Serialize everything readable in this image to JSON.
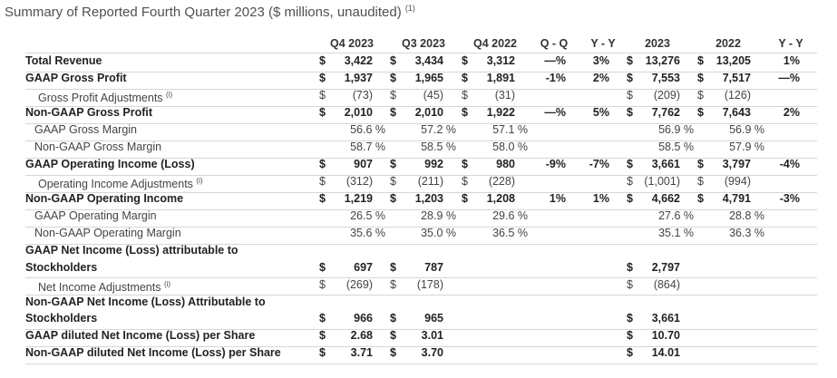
{
  "title": {
    "text": "Summary of Reported Fourth Quarter 2023 ($ millions, unaudited)",
    "note": "(1)"
  },
  "columns": [
    "Q4 2023",
    "Q3 2023",
    "Q4 2022",
    "Q - Q",
    "Y - Y",
    "2023",
    "2022",
    "Y - Y"
  ],
  "rows": [
    {
      "label": "Total Revenue",
      "bold": true,
      "indent": false,
      "lines": 1,
      "q4_23": "3,422",
      "q3_23": "3,434",
      "q4_22": "3,312",
      "qq": "—%",
      "yy": "3%",
      "fy23": "13,276",
      "fy22": "13,205",
      "fyy": "1%",
      "dol": [
        true,
        true,
        true,
        true,
        true
      ]
    },
    {
      "label": "GAAP Gross Profit",
      "bold": true,
      "indent": false,
      "lines": 1,
      "q4_23": "1,937",
      "q3_23": "1,965",
      "q4_22": "1,891",
      "qq": "-1%",
      "yy": "2%",
      "fy23": "7,553",
      "fy22": "7,517",
      "fyy": "—%",
      "dol": [
        true,
        true,
        true,
        true,
        true
      ]
    },
    {
      "label": "Gross Profit Adjustments",
      "sup": "(i)",
      "bold": false,
      "indent": true,
      "lines": 1,
      "q4_23": "(73)",
      "q3_23": "(45)",
      "q4_22": "(31)",
      "qq": "",
      "yy": "",
      "fy23": "(209)",
      "fy22": "(126)",
      "fyy": "",
      "dol": [
        true,
        true,
        true,
        true,
        true
      ]
    },
    {
      "label": "Non-GAAP Gross Profit",
      "bold": true,
      "indent": false,
      "lines": 1,
      "q4_23": "2,010",
      "q3_23": "2,010",
      "q4_22": "1,922",
      "qq": "—%",
      "yy": "5%",
      "fy23": "7,762",
      "fy22": "7,643",
      "fyy": "2%",
      "dol": [
        true,
        true,
        true,
        true,
        true
      ]
    },
    {
      "label": "GAAP Gross Margin",
      "bold": false,
      "indent": true,
      "lines": 1,
      "pct": true,
      "q4_23": "56.6 %",
      "q3_23": "57.2 %",
      "q4_22": "57.1 %",
      "qq": "",
      "yy": "",
      "fy23": "56.9 %",
      "fy22": "56.9 %",
      "fyy": "",
      "dol": [
        false,
        false,
        false,
        false,
        false
      ]
    },
    {
      "label": "Non-GAAP Gross Margin",
      "bold": false,
      "indent": true,
      "lines": 1,
      "pct": true,
      "q4_23": "58.7 %",
      "q3_23": "58.5 %",
      "q4_22": "58.0 %",
      "qq": "",
      "yy": "",
      "fy23": "58.5 %",
      "fy22": "57.9 %",
      "fyy": "",
      "dol": [
        false,
        false,
        false,
        false,
        false
      ]
    },
    {
      "label": "GAAP Operating Income (Loss)",
      "bold": true,
      "indent": false,
      "lines": 1,
      "q4_23": "907",
      "q3_23": "992",
      "q4_22": "980",
      "qq": "-9%",
      "yy": "-7%",
      "fy23": "3,661",
      "fy22": "3,797",
      "fyy": "-4%",
      "dol": [
        true,
        true,
        true,
        true,
        true
      ]
    },
    {
      "label": "Operating Income Adjustments",
      "sup": "(i)",
      "bold": false,
      "indent": true,
      "lines": 1,
      "q4_23": "(312)",
      "q3_23": "(211)",
      "q4_22": "(228)",
      "qq": "",
      "yy": "",
      "fy23": "(1,001)",
      "fy22": "(994)",
      "fyy": "",
      "dol": [
        true,
        true,
        true,
        true,
        true
      ]
    },
    {
      "label": "Non-GAAP Operating Income",
      "bold": true,
      "indent": false,
      "lines": 1,
      "q4_23": "1,219",
      "q3_23": "1,203",
      "q4_22": "1,208",
      "qq": "1%",
      "yy": "1%",
      "fy23": "4,662",
      "fy22": "4,791",
      "fyy": "-3%",
      "dol": [
        true,
        true,
        true,
        true,
        true
      ]
    },
    {
      "label": "GAAP Operating Margin",
      "bold": false,
      "indent": true,
      "lines": 1,
      "pct": true,
      "q4_23": "26.5 %",
      "q3_23": "28.9 %",
      "q4_22": "29.6 %",
      "qq": "",
      "yy": "",
      "fy23": "27.6 %",
      "fy22": "28.8 %",
      "fyy": "",
      "dol": [
        false,
        false,
        false,
        false,
        false
      ]
    },
    {
      "label": "Non-GAAP Operating Margin",
      "bold": false,
      "indent": true,
      "lines": 1,
      "pct": true,
      "q4_23": "35.6 %",
      "q3_23": "35.0 %",
      "q4_22": "36.5 %",
      "qq": "",
      "yy": "",
      "fy23": "35.1 %",
      "fy22": "36.3 %",
      "fyy": "",
      "dol": [
        false,
        false,
        false,
        false,
        false
      ]
    },
    {
      "label": "GAAP Net Income (Loss) attributable to",
      "label2": "Stockholders",
      "bold": true,
      "indent": false,
      "lines": 2,
      "q4_23": "697",
      "q3_23": "787",
      "q4_22": "",
      "qq": "",
      "yy": "",
      "fy23": "2,797",
      "fy22": "",
      "fyy": "",
      "dol": [
        true,
        true,
        false,
        true,
        false
      ]
    },
    {
      "label": "Net Income Adjustments",
      "sup": "(i)",
      "bold": false,
      "indent": true,
      "lines": 1,
      "q4_23": "(269)",
      "q3_23": "(178)",
      "q4_22": "",
      "qq": "",
      "yy": "",
      "fy23": "(864)",
      "fy22": "",
      "fyy": "",
      "dol": [
        true,
        true,
        false,
        true,
        false
      ]
    },
    {
      "label": "Non-GAAP Net Income (Loss) Attributable to",
      "label2": "Stockholders",
      "bold": true,
      "indent": false,
      "lines": 2,
      "q4_23": "966",
      "q3_23": "965",
      "q4_22": "",
      "qq": "",
      "yy": "",
      "fy23": "3,661",
      "fy22": "",
      "fyy": "",
      "dol": [
        true,
        true,
        false,
        true,
        false
      ]
    },
    {
      "label": "GAAP diluted Net Income (Loss) per Share",
      "bold": true,
      "indent": false,
      "lines": 1,
      "q4_23": "2.68",
      "q3_23": "3.01",
      "q4_22": "",
      "qq": "",
      "yy": "",
      "fy23": "10.70",
      "fy22": "",
      "fyy": "",
      "dol": [
        true,
        true,
        false,
        true,
        false
      ]
    },
    {
      "label": "Non-GAAP diluted Net Income (Loss) per Share",
      "bold": true,
      "indent": false,
      "lines": 1,
      "q4_23": "3.71",
      "q3_23": "3.70",
      "q4_22": "",
      "qq": "",
      "yy": "",
      "fy23": "14.01",
      "fy22": "",
      "fyy": "",
      "dol": [
        true,
        true,
        false,
        true,
        false
      ]
    }
  ],
  "currency_symbol": "$"
}
